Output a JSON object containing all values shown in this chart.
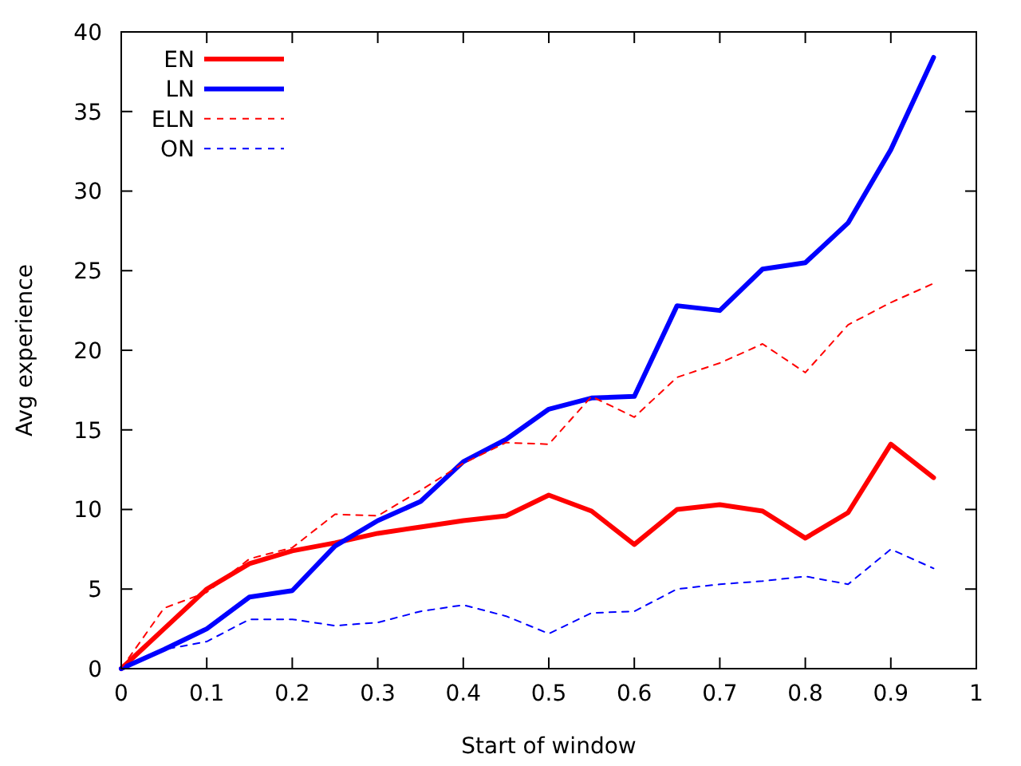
{
  "chart_data": {
    "type": "line",
    "xlabel": "Start of window",
    "ylabel": "Avg experience",
    "x": [
      0,
      0.05,
      0.1,
      0.15,
      0.2,
      0.25,
      0.3,
      0.35,
      0.4,
      0.45,
      0.5,
      0.55,
      0.6,
      0.65,
      0.7,
      0.75,
      0.8,
      0.85,
      0.9,
      0.95
    ],
    "series": [
      {
        "name": "EN",
        "color": "#ff0000",
        "line_style": "solid",
        "values": [
          0,
          2.5,
          5.0,
          6.6,
          7.4,
          7.9,
          8.5,
          8.9,
          9.3,
          9.6,
          10.9,
          9.9,
          7.8,
          10.0,
          10.3,
          9.9,
          8.2,
          9.8,
          14.1,
          12.0
        ]
      },
      {
        "name": "LN",
        "color": "#0000ff",
        "line_style": "solid",
        "values": [
          0,
          1.2,
          2.5,
          4.5,
          4.9,
          7.7,
          9.3,
          10.5,
          13.0,
          14.4,
          16.3,
          17.0,
          17.1,
          22.8,
          22.5,
          25.1,
          25.5,
          28.0,
          32.6,
          38.4
        ]
      },
      {
        "name": "ELN",
        "color": "#ff0000",
        "line_style": "dashed",
        "values": [
          0,
          3.8,
          4.8,
          6.9,
          7.6,
          9.7,
          9.6,
          11.2,
          12.9,
          14.2,
          14.1,
          17.1,
          15.8,
          18.3,
          19.2,
          20.4,
          18.6,
          21.6,
          23.0,
          24.2
        ]
      },
      {
        "name": "ON",
        "color": "#0000ff",
        "line_style": "dashed",
        "values": [
          0,
          1.2,
          1.7,
          3.1,
          3.1,
          2.7,
          2.9,
          3.6,
          4.0,
          3.3,
          2.2,
          3.5,
          3.6,
          5.0,
          5.3,
          5.5,
          5.8,
          5.3,
          7.5,
          6.3
        ]
      }
    ],
    "xlim": [
      0,
      1
    ],
    "xticks": [
      0,
      0.1,
      0.2,
      0.3,
      0.4,
      0.5,
      0.6,
      0.7,
      0.8,
      0.9,
      1
    ],
    "ylim": [
      0,
      40
    ],
    "yticks": [
      0,
      5,
      10,
      15,
      20,
      25,
      30,
      35,
      40
    ],
    "grid": false,
    "legend": "top left"
  }
}
